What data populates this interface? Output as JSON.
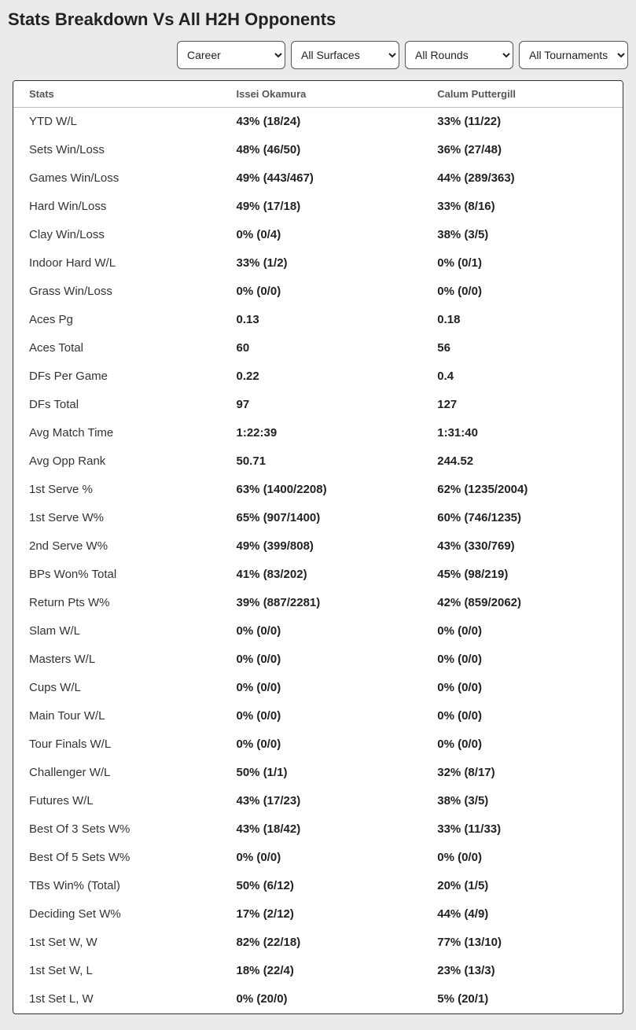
{
  "title": "Stats Breakdown Vs All H2H Opponents",
  "filters": {
    "period": {
      "selected": "Career"
    },
    "surface": {
      "selected": "All Surfaces"
    },
    "round": {
      "selected": "All Rounds"
    },
    "tournament": {
      "selected": "All Tournaments"
    }
  },
  "columns": {
    "stats": "Stats",
    "player1": "Issei Okamura",
    "player2": "Calum Puttergill"
  },
  "rows": [
    {
      "label": "YTD W/L",
      "p1": "43% (18/24)",
      "p2": "33% (11/22)"
    },
    {
      "label": "Sets Win/Loss",
      "p1": "48% (46/50)",
      "p2": "36% (27/48)"
    },
    {
      "label": "Games Win/Loss",
      "p1": "49% (443/467)",
      "p2": "44% (289/363)"
    },
    {
      "label": "Hard Win/Loss",
      "p1": "49% (17/18)",
      "p2": "33% (8/16)"
    },
    {
      "label": "Clay Win/Loss",
      "p1": "0% (0/4)",
      "p2": "38% (3/5)"
    },
    {
      "label": "Indoor Hard W/L",
      "p1": "33% (1/2)",
      "p2": "0% (0/1)"
    },
    {
      "label": "Grass Win/Loss",
      "p1": "0% (0/0)",
      "p2": "0% (0/0)"
    },
    {
      "label": "Aces Pg",
      "p1": "0.13",
      "p2": "0.18"
    },
    {
      "label": "Aces Total",
      "p1": "60",
      "p2": "56"
    },
    {
      "label": "DFs Per Game",
      "p1": "0.22",
      "p2": "0.4"
    },
    {
      "label": "DFs Total",
      "p1": "97",
      "p2": "127"
    },
    {
      "label": "Avg Match Time",
      "p1": "1:22:39",
      "p2": "1:31:40"
    },
    {
      "label": "Avg Opp Rank",
      "p1": "50.71",
      "p2": "244.52"
    },
    {
      "label": "1st Serve %",
      "p1": "63% (1400/2208)",
      "p2": "62% (1235/2004)"
    },
    {
      "label": "1st Serve W%",
      "p1": "65% (907/1400)",
      "p2": "60% (746/1235)"
    },
    {
      "label": "2nd Serve W%",
      "p1": "49% (399/808)",
      "p2": "43% (330/769)"
    },
    {
      "label": "BPs Won% Total",
      "p1": "41% (83/202)",
      "p2": "45% (98/219)"
    },
    {
      "label": "Return Pts W%",
      "p1": "39% (887/2281)",
      "p2": "42% (859/2062)"
    },
    {
      "label": "Slam W/L",
      "p1": "0% (0/0)",
      "p2": "0% (0/0)"
    },
    {
      "label": "Masters W/L",
      "p1": "0% (0/0)",
      "p2": "0% (0/0)"
    },
    {
      "label": "Cups W/L",
      "p1": "0% (0/0)",
      "p2": "0% (0/0)"
    },
    {
      "label": "Main Tour W/L",
      "p1": "0% (0/0)",
      "p2": "0% (0/0)"
    },
    {
      "label": "Tour Finals W/L",
      "p1": "0% (0/0)",
      "p2": "0% (0/0)"
    },
    {
      "label": "Challenger W/L",
      "p1": "50% (1/1)",
      "p2": "32% (8/17)"
    },
    {
      "label": "Futures W/L",
      "p1": "43% (17/23)",
      "p2": "38% (3/5)"
    },
    {
      "label": "Best Of 3 Sets W%",
      "p1": "43% (18/42)",
      "p2": "33% (11/33)"
    },
    {
      "label": "Best Of 5 Sets W%",
      "p1": "0% (0/0)",
      "p2": "0% (0/0)"
    },
    {
      "label": "TBs Win% (Total)",
      "p1": "50% (6/12)",
      "p2": "20% (1/5)"
    },
    {
      "label": "Deciding Set W%",
      "p1": "17% (2/12)",
      "p2": "44% (4/9)"
    },
    {
      "label": "1st Set W, W",
      "p1": "82% (22/18)",
      "p2": "77% (13/10)"
    },
    {
      "label": "1st Set W, L",
      "p1": "18% (22/4)",
      "p2": "23% (13/3)"
    },
    {
      "label": "1st Set L, W",
      "p1": "0% (20/0)",
      "p2": "5% (20/1)"
    }
  ]
}
